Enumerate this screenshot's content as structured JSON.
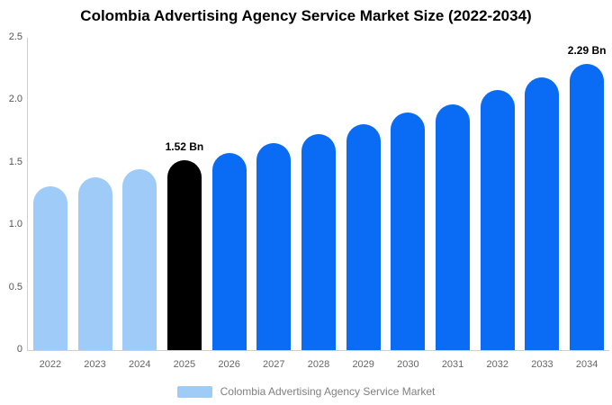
{
  "chart_data": {
    "type": "bar",
    "title": "Colombia Advertising Agency Service Market Size (2022-2034)",
    "categories": [
      "2022",
      "2023",
      "2024",
      "2025",
      "2026",
      "2027",
      "2028",
      "2029",
      "2030",
      "2031",
      "2032",
      "2033",
      "2034"
    ],
    "values": [
      1.31,
      1.38,
      1.45,
      1.52,
      1.58,
      1.66,
      1.73,
      1.81,
      1.9,
      1.97,
      2.08,
      2.18,
      2.29
    ],
    "unit": "Bn",
    "xlabel": "",
    "ylabel": "",
    "ylim": [
      0,
      2.5
    ],
    "yticks": [
      {
        "value": 0,
        "label": "0"
      },
      {
        "value": 0.5,
        "label": "0.5"
      },
      {
        "value": 1.0,
        "label": "1.0"
      },
      {
        "value": 1.5,
        "label": "1.5"
      },
      {
        "value": 2.0,
        "label": "2.0"
      },
      {
        "value": 2.5,
        "label": "2.5"
      }
    ],
    "grid": false,
    "legend_position": "bottom",
    "legend_entries": [
      "Colombia Advertising Agency Service Market"
    ],
    "bar_colors": [
      "#9fcbf8",
      "#9fcbf8",
      "#9fcbf8",
      "#000000",
      "#0a6cf5",
      "#0a6cf5",
      "#0a6cf5",
      "#0a6cf5",
      "#0a6cf5",
      "#0a6cf5",
      "#0a6cf5",
      "#0a6cf5",
      "#0a6cf5"
    ],
    "annotations": [
      {
        "category": "2025",
        "text": "1.52 Bn"
      },
      {
        "category": "2034",
        "text": "2.29 Bn"
      }
    ],
    "colors": {
      "historic_bar": "#9fcbf8",
      "highlight_bar": "#000000",
      "forecast_bar": "#0a6cf5",
      "axis_line": "#cfcfcf",
      "tick_label": "#555555",
      "legend_text": "#808080",
      "legend_swatch": "#9fcbf8"
    }
  }
}
